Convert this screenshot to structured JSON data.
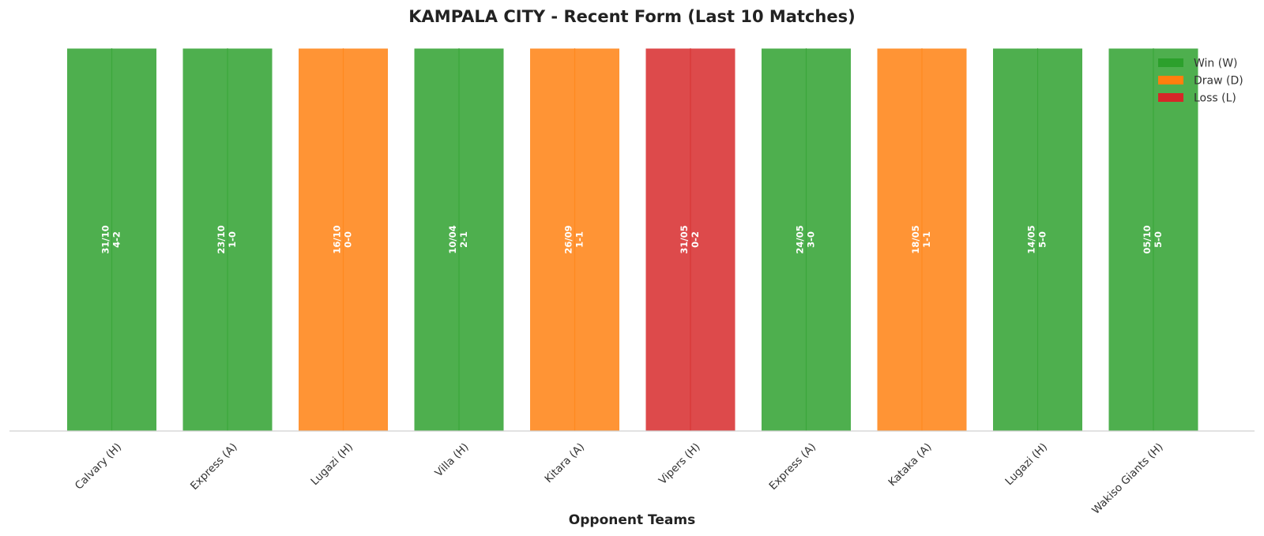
{
  "chart_data": {
    "type": "bar",
    "title": "KAMPALA CITY - Recent Form (Last 10 Matches)",
    "xlabel": "Opponent Teams",
    "ylabel": "",
    "ylim": [
      0,
      1
    ],
    "grid": false,
    "legend_position": "top-right",
    "categories": [
      "Calvary (H)",
      "Express (A)",
      "Lugazi (H)",
      "Villa (H)",
      "Kitara (A)",
      "Vipers (H)",
      "Express (A)",
      "Kataka (A)",
      "Lugazi (H)",
      "Wakiso Giants (H)"
    ],
    "values": [
      1,
      1,
      1,
      1,
      1,
      1,
      1,
      1,
      1,
      1
    ],
    "results": [
      "W",
      "W",
      "D",
      "W",
      "D",
      "L",
      "W",
      "D",
      "W",
      "W"
    ],
    "dates": [
      "31/10",
      "23/10",
      "16/10",
      "10/04",
      "26/09",
      "31/05",
      "24/05",
      "18/05",
      "14/05",
      "05/10"
    ],
    "scores": [
      "4-2",
      "1-0",
      "0-0",
      "2-1",
      "1-1",
      "0-2",
      "3-0",
      "1-1",
      "5-0",
      "5-0"
    ],
    "legend": [
      {
        "key": "W",
        "label": "Win (W)"
      },
      {
        "key": "D",
        "label": "Draw (D)"
      },
      {
        "key": "L",
        "label": "Loss (L)"
      }
    ],
    "colors": {
      "W": "#2ca02c",
      "D": "#ff7f0e",
      "L": "#d62728",
      "axis": "#d0d0d0"
    }
  }
}
